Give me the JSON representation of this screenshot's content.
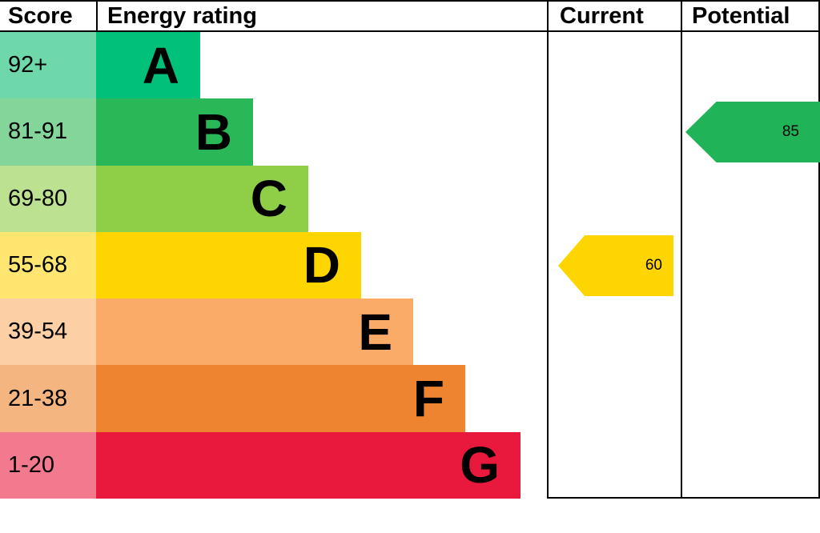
{
  "header": {
    "score": "Score",
    "energy_rating": "Energy rating",
    "current": "Current",
    "potential": "Potential"
  },
  "chart_data": {
    "type": "bar",
    "title": "Energy rating (EPC band chart)",
    "categories": [
      "92+",
      "81-91",
      "69-80",
      "55-68",
      "39-54",
      "21-38",
      "1-20"
    ],
    "bands": [
      {
        "letter": "A",
        "range": "92+",
        "color": "#00c07a",
        "tint": "#6fd8ab"
      },
      {
        "letter": "B",
        "range": "81-91",
        "color": "#2ab757",
        "tint": "#84d59a"
      },
      {
        "letter": "C",
        "range": "69-80",
        "color": "#8fce47",
        "tint": "#bce291"
      },
      {
        "letter": "D",
        "range": "55-68",
        "color": "#ffd500",
        "tint": "#ffe671"
      },
      {
        "letter": "E",
        "range": "39-54",
        "color": "#fbab68",
        "tint": "#fdcfa5"
      },
      {
        "letter": "F",
        "range": "21-38",
        "color": "#ee8430",
        "tint": "#f5b581"
      },
      {
        "letter": "G",
        "range": "1-20",
        "color": "#e9183d",
        "tint": "#f2798e"
      }
    ],
    "current": {
      "value": "60",
      "band": "D",
      "color": "#ffd500"
    },
    "potential": {
      "value": "85",
      "band": "B",
      "color": "#21b357"
    }
  }
}
